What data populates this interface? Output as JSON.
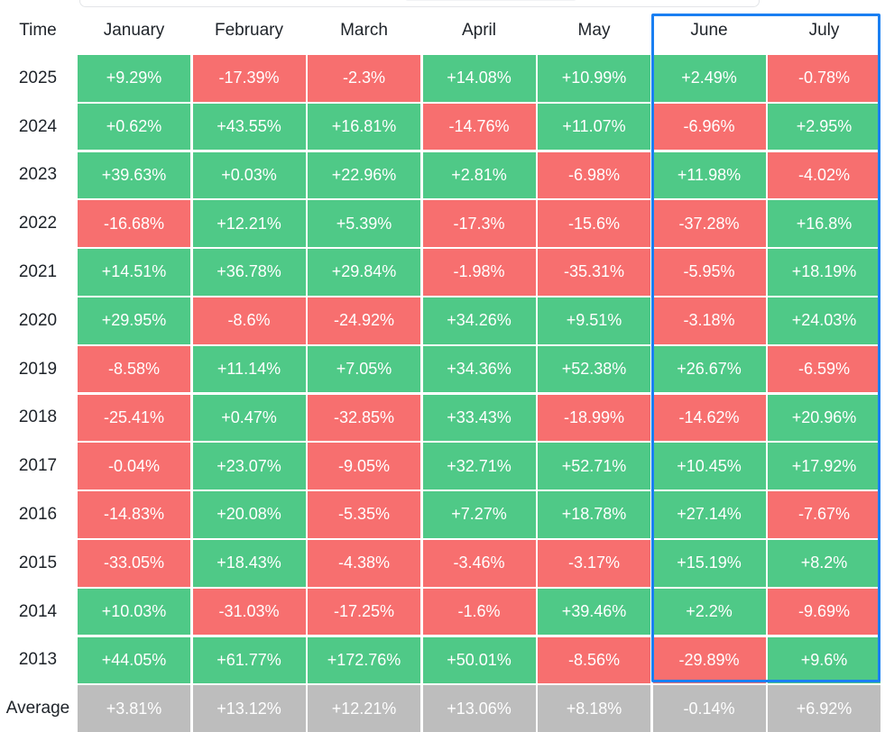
{
  "chart_data": {
    "type": "heatmap",
    "corner_label": "Time",
    "columns": [
      "January",
      "February",
      "March",
      "April",
      "May",
      "June",
      "July"
    ],
    "rows": [
      {
        "label": "2025",
        "values": [
          "+9.29%",
          "-17.39%",
          "-2.3%",
          "+14.08%",
          "+10.99%",
          "+2.49%",
          "-0.78%"
        ]
      },
      {
        "label": "2024",
        "values": [
          "+0.62%",
          "+43.55%",
          "+16.81%",
          "-14.76%",
          "+11.07%",
          "-6.96%",
          "+2.95%"
        ]
      },
      {
        "label": "2023",
        "values": [
          "+39.63%",
          "+0.03%",
          "+22.96%",
          "+2.81%",
          "-6.98%",
          "+11.98%",
          "-4.02%"
        ]
      },
      {
        "label": "2022",
        "values": [
          "-16.68%",
          "+12.21%",
          "+5.39%",
          "-17.3%",
          "-15.6%",
          "-37.28%",
          "+16.8%"
        ]
      },
      {
        "label": "2021",
        "values": [
          "+14.51%",
          "+36.78%",
          "+29.84%",
          "-1.98%",
          "-35.31%",
          "-5.95%",
          "+18.19%"
        ]
      },
      {
        "label": "2020",
        "values": [
          "+29.95%",
          "-8.6%",
          "-24.92%",
          "+34.26%",
          "+9.51%",
          "-3.18%",
          "+24.03%"
        ]
      },
      {
        "label": "2019",
        "values": [
          "-8.58%",
          "+11.14%",
          "+7.05%",
          "+34.36%",
          "+52.38%",
          "+26.67%",
          "-6.59%"
        ]
      },
      {
        "label": "2018",
        "values": [
          "-25.41%",
          "+0.47%",
          "-32.85%",
          "+33.43%",
          "-18.99%",
          "-14.62%",
          "+20.96%"
        ]
      },
      {
        "label": "2017",
        "values": [
          "-0.04%",
          "+23.07%",
          "-9.05%",
          "+32.71%",
          "+52.71%",
          "+10.45%",
          "+17.92%"
        ]
      },
      {
        "label": "2016",
        "values": [
          "-14.83%",
          "+20.08%",
          "-5.35%",
          "+7.27%",
          "+18.78%",
          "+27.14%",
          "-7.67%"
        ]
      },
      {
        "label": "2015",
        "values": [
          "-33.05%",
          "+18.43%",
          "-4.38%",
          "-3.46%",
          "-3.17%",
          "+15.19%",
          "+8.2%"
        ]
      },
      {
        "label": "2014",
        "values": [
          "+10.03%",
          "-31.03%",
          "-17.25%",
          "-1.6%",
          "+39.46%",
          "+2.2%",
          "-9.69%"
        ]
      },
      {
        "label": "2013",
        "values": [
          "+44.05%",
          "+61.77%",
          "+172.76%",
          "+50.01%",
          "-8.56%",
          "-29.89%",
          "+9.6%"
        ]
      }
    ],
    "average": {
      "label": "Average",
      "values": [
        "+3.81%",
        "+13.12%",
        "+12.21%",
        "+13.06%",
        "+8.18%",
        "-0.14%",
        "+6.92%"
      ]
    },
    "highlighted_columns": [
      "June",
      "July"
    ],
    "colors": {
      "positive": "#4fc987",
      "negative": "#f76f6f",
      "average": "#bdbdbd",
      "highlight": "#1a7ff2"
    }
  }
}
